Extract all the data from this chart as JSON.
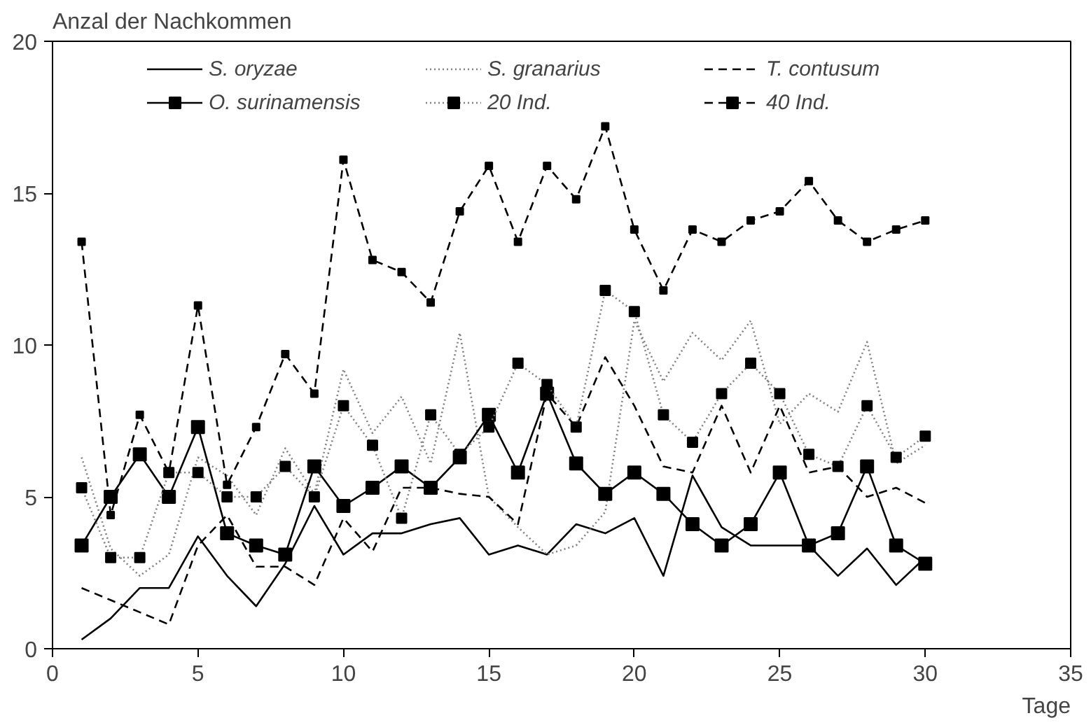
{
  "chart_data": {
    "type": "line",
    "xlabel": "Tage",
    "ylabel": "Anzal der Nachkommen",
    "x": [
      1,
      2,
      3,
      4,
      5,
      6,
      7,
      8,
      9,
      10,
      11,
      12,
      13,
      14,
      15,
      16,
      17,
      18,
      19,
      20,
      21,
      22,
      23,
      24,
      25,
      26,
      27,
      28,
      29,
      30
    ],
    "xlim": [
      0,
      35
    ],
    "xticks": [
      0,
      5,
      10,
      15,
      20,
      25,
      30,
      35
    ],
    "ylim": [
      0,
      20
    ],
    "yticks": [
      0,
      5,
      10,
      15,
      20
    ],
    "grid": false,
    "legend": "top",
    "series": [
      {
        "name": "S. oryzae",
        "color": "#000000",
        "line_style": "solid",
        "marker": "none",
        "values": [
          0.3,
          1.0,
          2.0,
          2.0,
          3.7,
          2.4,
          1.4,
          2.8,
          4.7,
          3.1,
          3.8,
          3.8,
          4.1,
          4.3,
          3.1,
          3.4,
          3.1,
          4.1,
          3.8,
          4.3,
          2.4,
          5.7,
          4.0,
          3.4,
          3.4,
          3.4,
          2.4,
          3.3,
          2.1,
          3.0
        ]
      },
      {
        "name": "S. granarius",
        "color": "#808080",
        "line_style": "dotted",
        "marker": "none",
        "values": [
          6.3,
          3.3,
          2.4,
          3.1,
          6.3,
          5.7,
          4.4,
          6.6,
          5.1,
          9.2,
          7.1,
          8.3,
          6.1,
          10.4,
          5.0,
          4.0,
          3.1,
          3.4,
          4.5,
          10.8,
          8.8,
          10.4,
          9.5,
          10.8,
          7.4,
          8.4,
          7.8,
          10.1,
          6.1,
          6.7
        ]
      },
      {
        "name": "T. contusum",
        "color": "#000000",
        "line_style": "dashed",
        "marker": "none",
        "values": [
          2.0,
          1.6,
          1.2,
          0.8,
          3.4,
          4.4,
          2.7,
          2.7,
          2.1,
          4.3,
          3.2,
          5.3,
          5.3,
          5.1,
          5.0,
          4.1,
          8.4,
          7.3,
          9.6,
          8.0,
          6.0,
          5.8,
          8.0,
          5.8,
          8.0,
          5.8,
          6.0,
          5.0,
          5.3,
          4.8
        ]
      },
      {
        "name": "O. surinamensis",
        "color": "#000000",
        "line_style": "solid",
        "marker": "square",
        "values": [
          3.4,
          5.0,
          6.4,
          5.0,
          7.3,
          3.8,
          3.4,
          3.1,
          6.0,
          4.7,
          5.3,
          6.0,
          5.3,
          6.3,
          7.7,
          5.8,
          8.4,
          6.1,
          5.1,
          5.8,
          5.1,
          4.1,
          3.4,
          4.1,
          5.8,
          3.4,
          3.8,
          6.0,
          3.4,
          2.8
        ]
      },
      {
        "name": "20 Ind.",
        "color": "#808080",
        "line_style": "dotted",
        "marker": "square",
        "values": [
          5.3,
          3.0,
          3.0,
          5.8,
          5.8,
          5.0,
          5.0,
          6.0,
          5.0,
          8.0,
          6.7,
          4.3,
          7.7,
          6.4,
          7.3,
          9.4,
          8.7,
          7.3,
          11.8,
          11.1,
          7.7,
          6.8,
          8.4,
          9.4,
          8.4,
          6.4,
          6.0,
          8.0,
          6.3,
          7.0
        ]
      },
      {
        "name": "40 Ind.",
        "color": "#000000",
        "line_style": "dashed",
        "marker": "square",
        "values": [
          13.4,
          4.4,
          7.7,
          5.8,
          11.3,
          5.4,
          7.3,
          9.7,
          8.4,
          16.1,
          12.8,
          12.4,
          11.4,
          14.4,
          15.9,
          13.4,
          15.9,
          14.8,
          17.2,
          13.8,
          11.8,
          13.8,
          13.4,
          14.1,
          14.4,
          15.4,
          14.1,
          13.4,
          13.8,
          14.1
        ]
      }
    ]
  }
}
